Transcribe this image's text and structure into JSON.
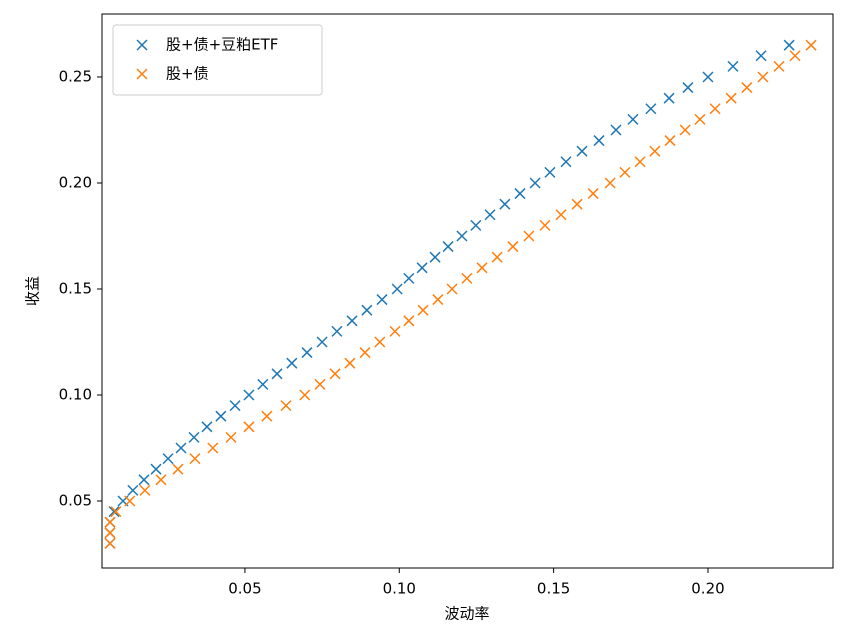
{
  "chart_data": {
    "type": "scatter",
    "xlabel": "波动率",
    "ylabel": "收益",
    "xlim": [
      0.0037,
      0.2405
    ],
    "ylim": [
      0.0184,
      0.2797
    ],
    "xticks": [
      0.05,
      {
        "value": 0.1,
        "label": "0.10"
      },
      0.15,
      {
        "value": 0.2,
        "label": "0.20"
      }
    ],
    "yticks": [
      0.05,
      {
        "value": 0.1,
        "label": "0.10"
      },
      0.15,
      {
        "value": 0.2,
        "label": "0.20"
      },
      0.25
    ],
    "grid": false,
    "legend": "upper left",
    "series": [
      {
        "name": "股+债+豆粕ETF",
        "color": "#1f77b4",
        "x": [
          0.0063,
          0.0063,
          0.0063,
          0.0076,
          0.0105,
          0.0137,
          0.0173,
          0.0212,
          0.0251,
          0.0293,
          0.0335,
          0.0377,
          0.0422,
          0.0468,
          0.0513,
          0.0558,
          0.0604,
          0.0652,
          0.0701,
          0.075,
          0.0798,
          0.0847,
          0.0895,
          0.0944,
          0.0993,
          0.1031,
          0.1074,
          0.1116,
          0.1158,
          0.1203,
          0.1248,
          0.1294,
          0.1342,
          0.1391,
          0.144,
          0.1488,
          0.154,
          0.1592,
          0.1647,
          0.1702,
          0.1757,
          0.1815,
          0.1874,
          0.1935,
          0.2,
          0.2081,
          0.2172,
          0.2263
        ],
        "values": [
          0.03,
          0.035,
          0.04,
          0.045,
          0.05,
          0.055,
          0.06,
          0.065,
          0.07,
          0.075,
          0.08,
          0.085,
          0.09,
          0.095,
          0.1,
          0.105,
          0.11,
          0.115,
          0.12,
          0.125,
          0.13,
          0.135,
          0.14,
          0.145,
          0.15,
          0.155,
          0.16,
          0.165,
          0.17,
          0.175,
          0.18,
          0.185,
          0.19,
          0.195,
          0.2,
          0.205,
          0.21,
          0.215,
          0.22,
          0.225,
          0.23,
          0.235,
          0.24,
          0.245,
          0.25,
          0.255,
          0.26,
          0.265
        ]
      },
      {
        "name": "股+债",
        "color": "#ff7f0e",
        "x": [
          0.0063,
          0.0063,
          0.0063,
          0.0082,
          0.0127,
          0.0176,
          0.0228,
          0.0283,
          0.0338,
          0.0396,
          0.0455,
          0.0513,
          0.0571,
          0.0633,
          0.0694,
          0.0743,
          0.0792,
          0.084,
          0.0889,
          0.0937,
          0.0986,
          0.1031,
          0.1077,
          0.1125,
          0.1171,
          0.1219,
          0.1268,
          0.1317,
          0.1368,
          0.142,
          0.1472,
          0.1524,
          0.1576,
          0.1628,
          0.1683,
          0.1731,
          0.178,
          0.1828,
          0.1877,
          0.1926,
          0.1974,
          0.2023,
          0.2075,
          0.2126,
          0.2178,
          0.223,
          0.2282,
          0.2334
        ],
        "values": [
          0.03,
          0.035,
          0.04,
          0.045,
          0.05,
          0.055,
          0.06,
          0.065,
          0.07,
          0.075,
          0.08,
          0.085,
          0.09,
          0.095,
          0.1,
          0.105,
          0.11,
          0.115,
          0.12,
          0.125,
          0.13,
          0.135,
          0.14,
          0.145,
          0.15,
          0.155,
          0.16,
          0.165,
          0.17,
          0.175,
          0.18,
          0.185,
          0.19,
          0.195,
          0.2,
          0.205,
          0.21,
          0.215,
          0.22,
          0.225,
          0.23,
          0.235,
          0.24,
          0.245,
          0.25,
          0.255,
          0.26,
          0.265
        ]
      }
    ]
  }
}
